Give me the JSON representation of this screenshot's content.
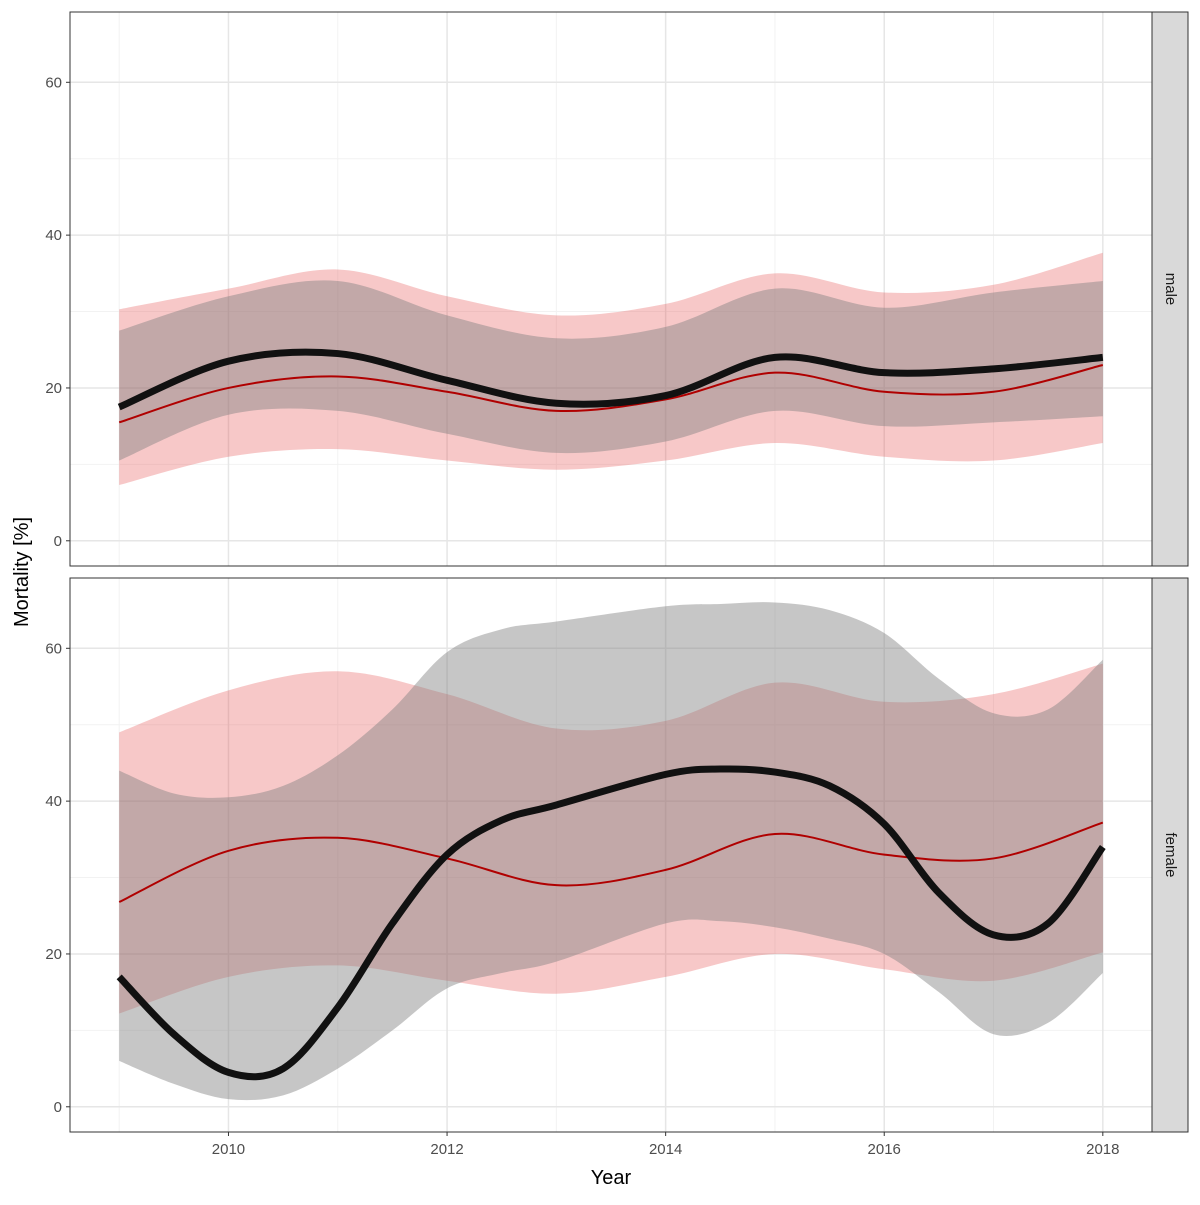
{
  "chart_data": {
    "type": "line",
    "xlabel": "Year",
    "ylabel": "Mortality [%]",
    "xlim": [
      2008.55,
      2018.45
    ],
    "ylim": [
      -3.3,
      69.2
    ],
    "x_ticks": [
      "2010",
      "2012",
      "2014",
      "2016",
      "2018"
    ],
    "x_tick_values": [
      2010,
      2012,
      2014,
      2016,
      2018
    ],
    "y_ticks": [
      "0",
      "20",
      "40",
      "60"
    ],
    "y_tick_values": [
      0,
      20,
      40,
      60
    ],
    "grid": true,
    "colors": {
      "observed_line": "#111111",
      "observed_band": "#808080",
      "model_line": "#b00000",
      "model_band": "#e34a4a",
      "strip": "#d9d9d9"
    },
    "panels": [
      {
        "label": "male",
        "observed": {
          "x": [
            2009,
            2010,
            2011,
            2012,
            2013,
            2014,
            2015,
            2016,
            2017,
            2018
          ],
          "y": [
            17.5,
            23.5,
            24.5,
            21,
            18,
            19,
            24,
            22,
            22.5,
            24
          ],
          "lower": [
            10.5,
            16.5,
            17,
            14,
            11.5,
            13,
            17,
            15,
            15.5,
            16.3
          ],
          "upper": [
            27.5,
            32,
            34,
            29.5,
            26.5,
            28,
            33,
            30.5,
            32.5,
            34
          ]
        },
        "model": {
          "x": [
            2009,
            2010,
            2011,
            2012,
            2013,
            2014,
            2015,
            2016,
            2017,
            2018
          ],
          "y": [
            15.5,
            20,
            21.5,
            19.5,
            17,
            18.5,
            22,
            19.5,
            19.5,
            23
          ],
          "lower": [
            7.3,
            11,
            12,
            10.5,
            9.3,
            10.5,
            12.8,
            11,
            10.5,
            12.8
          ],
          "upper": [
            30.3,
            33,
            35.5,
            32,
            29.5,
            31,
            35,
            32.5,
            33.5,
            37.7
          ]
        }
      },
      {
        "label": "female",
        "observed": {
          "x": [
            2009,
            2009.5,
            2010,
            2010.5,
            2011,
            2011.5,
            2012,
            2012.5,
            2013,
            2014,
            2014.5,
            2015,
            2015.5,
            2016,
            2016.5,
            2017,
            2017.5,
            2018
          ],
          "y": [
            17,
            9.5,
            4.5,
            5,
            13,
            24,
            33,
            37.5,
            39.5,
            43.5,
            44.2,
            43.8,
            42,
            37,
            28,
            22.5,
            24,
            34
          ],
          "lower": [
            6,
            3,
            1,
            1.5,
            5,
            10,
            15.5,
            17.5,
            19,
            24,
            24.3,
            23.5,
            22,
            20,
            15,
            9.5,
            11,
            17.5
          ],
          "upper": [
            44,
            41,
            40.5,
            42,
            46,
            52,
            59.5,
            62.5,
            63.5,
            65.5,
            65.8,
            66,
            65,
            62,
            56,
            51.5,
            52,
            58.5
          ]
        },
        "model": {
          "x": [
            2009,
            2010,
            2011,
            2012,
            2013,
            2014,
            2015,
            2016,
            2017,
            2018
          ],
          "y": [
            26.8,
            33.5,
            35.2,
            32.5,
            29,
            31,
            35.7,
            33,
            32.5,
            37.2
          ],
          "lower": [
            12.2,
            17,
            18.5,
            16.5,
            14.8,
            17,
            20,
            18,
            16.5,
            20.2
          ],
          "upper": [
            49,
            54.5,
            57,
            54,
            49.5,
            50.5,
            55.5,
            53,
            54,
            58
          ]
        }
      }
    ]
  }
}
